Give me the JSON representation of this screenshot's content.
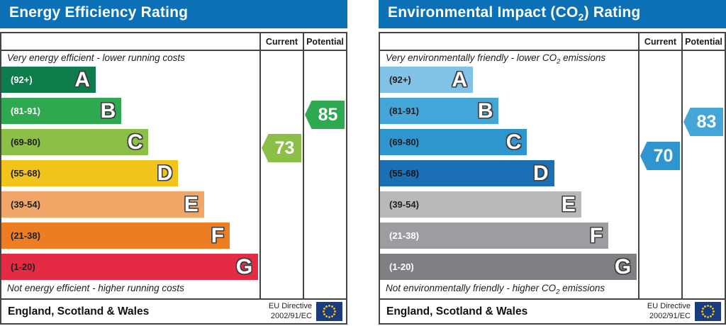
{
  "charts": {
    "left": {
      "title_parts": {
        "pre": "Energy Efficiency Rating",
        "sub": "",
        "post": ""
      },
      "columns": {
        "current_label": "Current",
        "potential_label": "Potential"
      },
      "top_caption_parts": {
        "pre": "Very energy efficient - lower running costs",
        "sub": "",
        "post": ""
      },
      "bottom_caption_parts": {
        "pre": "Not energy efficient - higher running costs",
        "sub": "",
        "post": ""
      },
      "bands": [
        {
          "letter": "A",
          "range": "(92+)",
          "color": "#0e7d4b",
          "label_color": "#ffffff",
          "width_pct": 36.5
        },
        {
          "letter": "B",
          "range": "(81-91)",
          "color": "#2ea94f",
          "label_color": "#ffffff",
          "width_pct": 46.5
        },
        {
          "letter": "C",
          "range": "(69-80)",
          "color": "#8bbf45",
          "label_color": "#20201e",
          "width_pct": 57
        },
        {
          "letter": "D",
          "range": "(55-68)",
          "color": "#f2c41b",
          "label_color": "#20201e",
          "width_pct": 68.5
        },
        {
          "letter": "E",
          "range": "(39-54)",
          "color": "#f1a566",
          "label_color": "#20201e",
          "width_pct": 78.5
        },
        {
          "letter": "F",
          "range": "(21-38)",
          "color": "#ec7d23",
          "label_color": "#20201e",
          "width_pct": 88.5
        },
        {
          "letter": "G",
          "range": "(1-20)",
          "color": "#e52b43",
          "label_color": "#20201e",
          "width_pct": 99.5
        }
      ],
      "current": {
        "value": "73",
        "band": "C",
        "color": "#8bbf45"
      },
      "potential": {
        "value": "85",
        "band": "B",
        "color": "#2ea94f"
      },
      "footer": {
        "region": "England, Scotland & Wales",
        "directive_line1": "EU Directive",
        "directive_line2": "2002/91/EC"
      }
    },
    "right": {
      "title_parts": {
        "pre": "Environmental Impact (CO",
        "sub": "2",
        "post": ") Rating"
      },
      "columns": {
        "current_label": "Current",
        "potential_label": "Potential"
      },
      "top_caption_parts": {
        "pre": "Very environmentally friendly - lower CO",
        "sub": "2",
        "post": " emissions"
      },
      "bottom_caption_parts": {
        "pre": "Not environmentally friendly - higher CO",
        "sub": "2",
        "post": " emissions"
      },
      "bands": [
        {
          "letter": "A",
          "range": "(92+)",
          "color": "#82c2e6",
          "label_color": "#20201e",
          "width_pct": 36
        },
        {
          "letter": "B",
          "range": "(81-91)",
          "color": "#44a5d8",
          "label_color": "#20201e",
          "width_pct": 46
        },
        {
          "letter": "C",
          "range": "(69-80)",
          "color": "#2e95cf",
          "label_color": "#20201e",
          "width_pct": 57
        },
        {
          "letter": "D",
          "range": "(55-68)",
          "color": "#1b6fb4",
          "label_color": "#16161a",
          "width_pct": 67.5
        },
        {
          "letter": "E",
          "range": "(39-54)",
          "color": "#b7b9bb",
          "label_color": "#20201e",
          "width_pct": 78
        },
        {
          "letter": "F",
          "range": "(21-38)",
          "color": "#9b9da0",
          "label_color": "#ffffff",
          "width_pct": 88.5
        },
        {
          "letter": "G",
          "range": "(1-20)",
          "color": "#7e8083",
          "label_color": "#ffffff",
          "width_pct": 99.5
        }
      ],
      "current": {
        "value": "70",
        "band": "C",
        "color": "#2e95cf"
      },
      "potential": {
        "value": "83",
        "band": "B",
        "color": "#44a5d8"
      },
      "footer": {
        "region": "England, Scotland & Wales",
        "directive_line1": "EU Directive",
        "directive_line2": "2002/91/EC"
      }
    }
  },
  "colors": {
    "header_blue": "#0b70b6",
    "border": "#454545",
    "eu_flag_blue": "#1c3b7d",
    "eu_flag_star": "#ffcc00"
  },
  "chart_data": [
    {
      "type": "bar",
      "title": "Energy Efficiency Rating",
      "categories": [
        "A (92+)",
        "B (81-91)",
        "C (69-80)",
        "D (55-68)",
        "E (39-54)",
        "F (21-38)",
        "G (1-20)"
      ],
      "band_colors": [
        "#0e7d4b",
        "#2ea94f",
        "#8bbf45",
        "#f2c41b",
        "#f1a566",
        "#ec7d23",
        "#e52b43"
      ],
      "columns": [
        "Current",
        "Potential"
      ],
      "current": 73,
      "current_band": "C",
      "potential": 85,
      "potential_band": "B",
      "scale": [
        1,
        100
      ],
      "top_caption": "Very energy efficient - lower running costs",
      "bottom_caption": "Not energy efficient - higher running costs",
      "region": "England, Scotland & Wales",
      "directive": "EU Directive 2002/91/EC"
    },
    {
      "type": "bar",
      "title": "Environmental Impact (CO2) Rating",
      "categories": [
        "A (92+)",
        "B (81-91)",
        "C (69-80)",
        "D (55-68)",
        "E (39-54)",
        "F (21-38)",
        "G (1-20)"
      ],
      "band_colors": [
        "#82c2e6",
        "#44a5d8",
        "#2e95cf",
        "#1b6fb4",
        "#b7b9bb",
        "#9b9da0",
        "#7e8083"
      ],
      "columns": [
        "Current",
        "Potential"
      ],
      "current": 70,
      "current_band": "C",
      "potential": 83,
      "potential_band": "B",
      "scale": [
        1,
        100
      ],
      "top_caption": "Very environmentally friendly - lower CO2 emissions",
      "bottom_caption": "Not environmentally friendly - higher CO2 emissions",
      "region": "England, Scotland & Wales",
      "directive": "EU Directive 2002/91/EC"
    }
  ]
}
